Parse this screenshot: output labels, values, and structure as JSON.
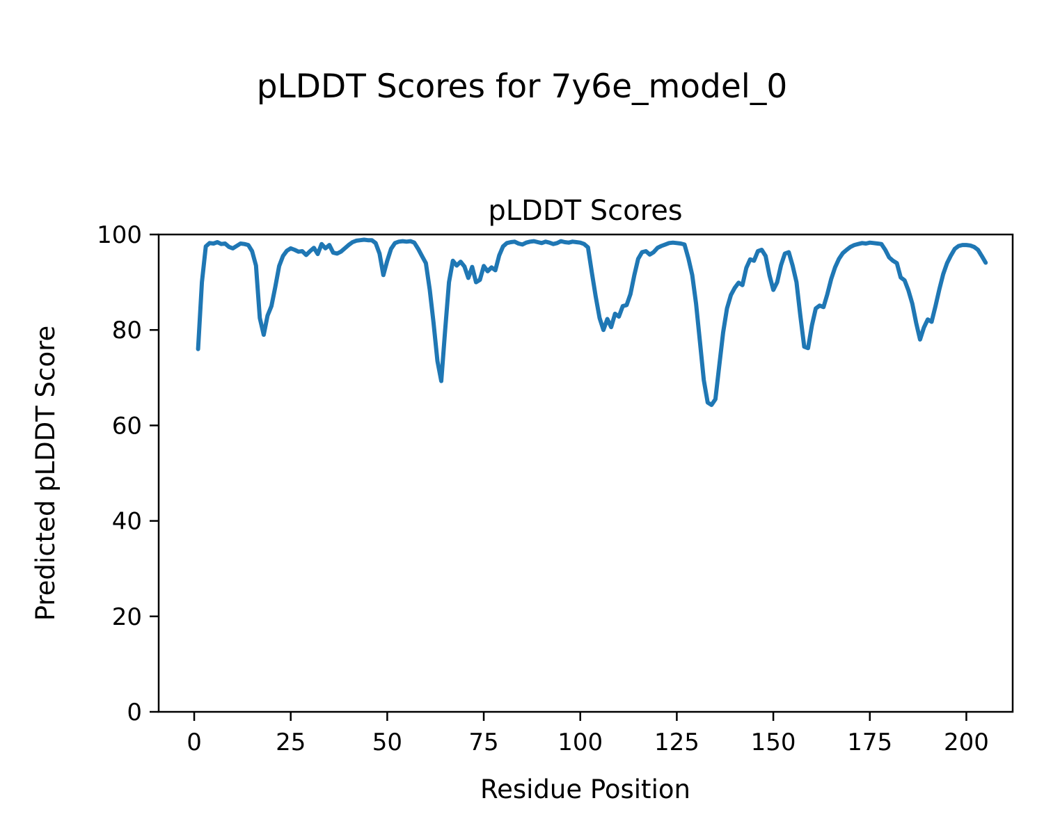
{
  "figure": {
    "suptitle": "pLDDT Scores for 7y6e_model_0",
    "background": "#ffffff",
    "spine_color": "#000000",
    "line_color": "#1f77b4"
  },
  "chart_data": {
    "type": "line",
    "title": "pLDDT Scores",
    "xlabel": "Residue Position",
    "ylabel": "Predicted pLDDT Score",
    "xlim": [
      -9.2,
      212.0
    ],
    "ylim": [
      0,
      100
    ],
    "x_ticks": [
      0,
      25,
      50,
      75,
      100,
      125,
      150,
      175,
      200
    ],
    "y_ticks": [
      0,
      20,
      40,
      60,
      80,
      100
    ],
    "grid": false,
    "legend": null,
    "series": [
      {
        "name": "pLDDT",
        "x": [
          1,
          2,
          3,
          4,
          5,
          6,
          7,
          8,
          9,
          10,
          11,
          12,
          13,
          14,
          15,
          16,
          17,
          18,
          19,
          20,
          21,
          22,
          23,
          24,
          25,
          26,
          27,
          28,
          29,
          30,
          31,
          32,
          33,
          34,
          35,
          36,
          37,
          38,
          39,
          40,
          41,
          42,
          43,
          44,
          45,
          46,
          47,
          48,
          49,
          50,
          51,
          52,
          53,
          54,
          55,
          56,
          57,
          58,
          59,
          60,
          61,
          62,
          63,
          64,
          65,
          66,
          67,
          68,
          69,
          70,
          71,
          72,
          73,
          74,
          75,
          76,
          77,
          78,
          79,
          80,
          81,
          82,
          83,
          84,
          85,
          86,
          87,
          88,
          89,
          90,
          91,
          92,
          93,
          94,
          95,
          96,
          97,
          98,
          99,
          100,
          101,
          102,
          103,
          104,
          105,
          106,
          107,
          108,
          109,
          110,
          111,
          112,
          113,
          114,
          115,
          116,
          117,
          118,
          119,
          120,
          121,
          122,
          123,
          124,
          125,
          126,
          127,
          128,
          129,
          130,
          131,
          132,
          133,
          134,
          135,
          136,
          137,
          138,
          139,
          140,
          141,
          142,
          143,
          144,
          145,
          146,
          147,
          148,
          149,
          150,
          151,
          152,
          153,
          154,
          155,
          156,
          157,
          158,
          159,
          160,
          161,
          162,
          163,
          164,
          165,
          166,
          167,
          168,
          169,
          170,
          171,
          172,
          173,
          174,
          175,
          176,
          177,
          178,
          179,
          180,
          181,
          182,
          183,
          184,
          185,
          186,
          187,
          188,
          189,
          190,
          191,
          192,
          193,
          194,
          195,
          196,
          197,
          198,
          199,
          200,
          201,
          202,
          203,
          204,
          205
        ],
        "y": [
          76.0,
          90.0,
          97.5,
          98.2,
          98.1,
          98.4,
          98.0,
          98.1,
          97.4,
          97.1,
          97.6,
          98.1,
          98.0,
          97.8,
          96.5,
          93.5,
          82.5,
          79.0,
          83.0,
          85.0,
          89.0,
          93.4,
          95.5,
          96.6,
          97.1,
          96.8,
          96.4,
          96.5,
          95.7,
          96.5,
          97.2,
          95.9,
          98.0,
          97.1,
          97.8,
          96.2,
          96.0,
          96.4,
          97.1,
          97.8,
          98.4,
          98.7,
          98.8,
          98.9,
          98.8,
          98.8,
          98.2,
          96.0,
          91.5,
          94.5,
          97.0,
          98.2,
          98.5,
          98.6,
          98.5,
          98.6,
          98.3,
          97.0,
          95.5,
          94.0,
          88.5,
          81.5,
          73.5,
          69.3,
          80.0,
          90.0,
          94.5,
          93.5,
          94.3,
          93.3,
          90.9,
          93.2,
          90.0,
          90.5,
          93.4,
          92.3,
          93.1,
          92.5,
          95.6,
          97.5,
          98.2,
          98.4,
          98.5,
          98.1,
          97.9,
          98.3,
          98.5,
          98.6,
          98.4,
          98.2,
          98.5,
          98.3,
          98.0,
          98.2,
          98.6,
          98.4,
          98.3,
          98.5,
          98.4,
          98.3,
          98.0,
          97.3,
          92.0,
          87.0,
          82.5,
          80.0,
          82.3,
          80.6,
          83.4,
          82.8,
          85.0,
          85.2,
          87.5,
          91.5,
          94.9,
          96.3,
          96.5,
          95.8,
          96.3,
          97.2,
          97.6,
          97.9,
          98.2,
          98.3,
          98.2,
          98.1,
          97.9,
          95.0,
          91.5,
          85.5,
          77.5,
          69.5,
          64.8,
          64.3,
          65.5,
          72.5,
          79.5,
          84.5,
          87.3,
          88.8,
          89.9,
          89.4,
          93.0,
          94.8,
          94.5,
          96.5,
          96.8,
          95.5,
          91.5,
          88.4,
          90.0,
          93.6,
          96.0,
          96.3,
          93.5,
          90.0,
          83.0,
          76.5,
          76.2,
          81.0,
          84.5,
          85.1,
          84.8,
          87.5,
          90.7,
          93.1,
          94.9,
          96.1,
          96.8,
          97.4,
          97.8,
          98.0,
          98.2,
          98.1,
          98.3,
          98.2,
          98.1,
          98.0,
          96.8,
          95.2,
          94.5,
          94.0,
          91.0,
          90.4,
          88.3,
          85.5,
          81.5,
          78.0,
          80.5,
          82.2,
          81.7,
          85.0,
          88.5,
          91.7,
          94.0,
          95.6,
          97.0,
          97.6,
          97.8,
          97.8,
          97.7,
          97.4,
          96.8,
          95.5,
          94.1
        ]
      }
    ]
  }
}
